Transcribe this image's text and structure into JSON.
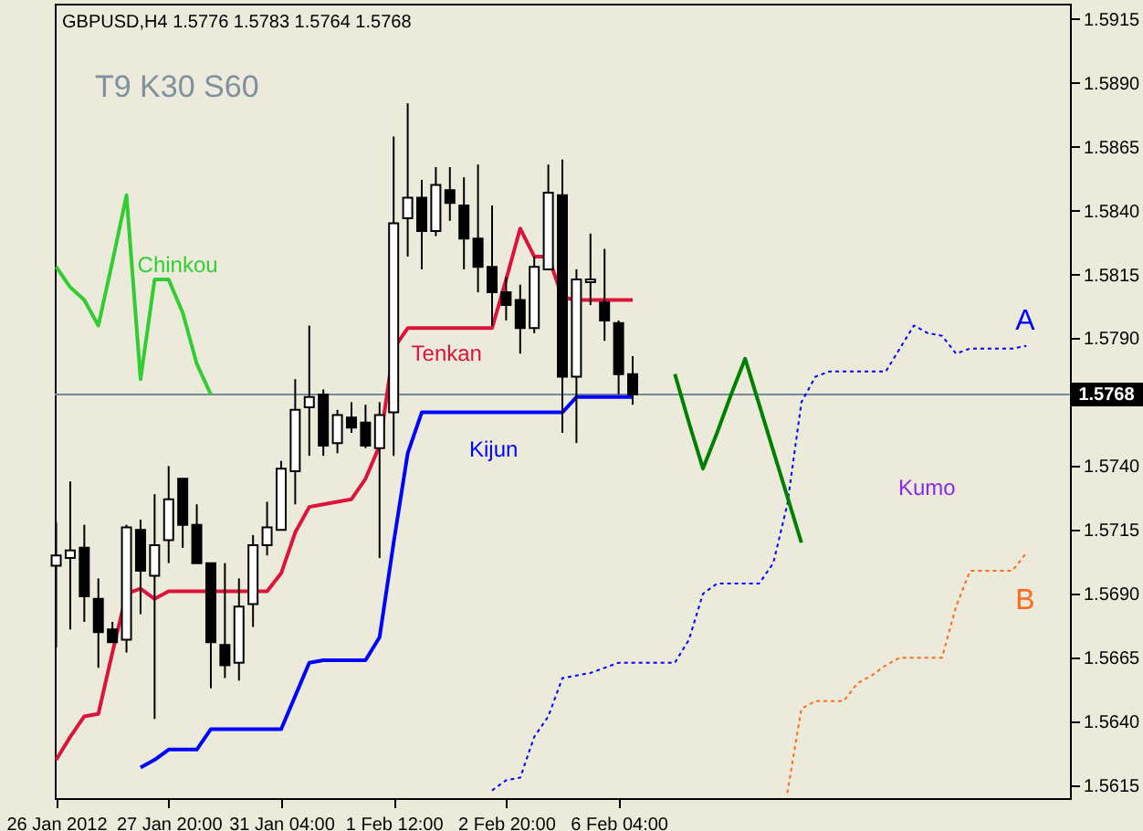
{
  "chart_data": {
    "type": "candlestick",
    "title": "GBPUSD,H4  1.5776 1.5783 1.5764 1.5768",
    "categories": [
      "26 Jan 2012",
      null,
      null,
      null,
      null,
      null,
      null,
      null,
      "27 Jan 20:00",
      null,
      null,
      null,
      null,
      null,
      null,
      null,
      "31 Jan 04:00",
      null,
      null,
      null,
      null,
      null,
      null,
      null,
      "1 Feb 12:00",
      null,
      null,
      null,
      null,
      null,
      null,
      null,
      "2 Feb 20:00",
      null,
      null,
      null,
      null,
      null,
      null,
      null,
      "6 Feb 04:00",
      null,
      null,
      null,
      null,
      null,
      null,
      null,
      null,
      null,
      null,
      null,
      null,
      null,
      null,
      null,
      null,
      null,
      null,
      null,
      null,
      null,
      null,
      null,
      null,
      null,
      null,
      null,
      null,
      null,
      null,
      null,
      null
    ],
    "ohlc": [
      [
        1.5701,
        1.5718,
        1.5669,
        1.5705
      ],
      [
        1.5704,
        1.5734,
        1.5676,
        1.5707
      ],
      [
        1.5708,
        1.5717,
        1.5679,
        1.5689
      ],
      [
        1.5688,
        1.5696,
        1.5661,
        1.5675
      ],
      [
        1.5676,
        1.5679,
        1.5671,
        1.5671
      ],
      [
        1.5672,
        1.5717,
        1.5667,
        1.5716
      ],
      [
        1.5715,
        1.5719,
        1.5682,
        1.5699
      ],
      [
        1.5697,
        1.5729,
        1.5641,
        1.5709
      ],
      [
        1.5711,
        1.574,
        1.5702,
        1.5727
      ],
      [
        1.5735,
        1.5735,
        1.5708,
        1.5717
      ],
      [
        1.5717,
        1.5725,
        1.5702,
        1.5702
      ],
      [
        1.5702,
        1.5702,
        1.5653,
        1.5671
      ],
      [
        1.567,
        1.5702,
        1.5657,
        1.5662
      ],
      [
        1.5663,
        1.5696,
        1.5656,
        1.5685
      ],
      [
        1.5686,
        1.5713,
        1.5677,
        1.5709
      ],
      [
        1.5709,
        1.5726,
        1.5705,
        1.5716
      ],
      [
        1.5715,
        1.5742,
        1.5715,
        1.5739
      ],
      [
        1.5738,
        1.5774,
        1.5725,
        1.5762
      ],
      [
        1.5763,
        1.5795,
        1.5744,
        1.5767
      ],
      [
        1.5768,
        1.577,
        1.5744,
        1.5748
      ],
      [
        1.5749,
        1.5762,
        1.5745,
        1.576
      ],
      [
        1.5759,
        1.5765,
        1.5753,
        1.5755
      ],
      [
        1.5757,
        1.5764,
        1.5747,
        1.5748
      ],
      [
        1.5747,
        1.5765,
        1.5704,
        1.576
      ],
      [
        1.5761,
        1.5869,
        1.5744,
        1.5835
      ],
      [
        1.5837,
        1.5882,
        1.5822,
        1.5845
      ],
      [
        1.5845,
        1.5852,
        1.5817,
        1.5832
      ],
      [
        1.5832,
        1.5857,
        1.583,
        1.585
      ],
      [
        1.5848,
        1.5857,
        1.5836,
        1.5843
      ],
      [
        1.5842,
        1.5853,
        1.5817,
        1.5829
      ],
      [
        1.5829,
        1.5858,
        1.5808,
        1.5818
      ],
      [
        1.5818,
        1.5842,
        1.5795,
        1.5808
      ],
      [
        1.5808,
        1.5814,
        1.5797,
        1.5803
      ],
      [
        1.5805,
        1.5811,
        1.5784,
        1.5794
      ],
      [
        1.5794,
        1.5822,
        1.5792,
        1.5818
      ],
      [
        1.5817,
        1.5858,
        1.5817,
        1.5847
      ],
      [
        1.5846,
        1.586,
        1.5753,
        1.5775
      ],
      [
        1.5775,
        1.5817,
        1.5749,
        1.5813
      ],
      [
        1.5812,
        1.5831,
        1.5803,
        1.5813
      ],
      [
        1.5804,
        1.5825,
        1.5789,
        1.5797
      ],
      [
        1.5796,
        1.5797,
        1.5768,
        1.5776
      ],
      [
        1.5776,
        1.5783,
        1.5764,
        1.5768
      ],
      null,
      null,
      null,
      null,
      null,
      null,
      null,
      null,
      null,
      null,
      null,
      null,
      null,
      null,
      null,
      null,
      null,
      null,
      null,
      null,
      null,
      null,
      null,
      null,
      null,
      null,
      null,
      null,
      null,
      null,
      null
    ],
    "series": [
      {
        "name": "Chinkou",
        "type": "line",
        "color": "#32cd32",
        "values": [
          1.5818,
          1.581,
          1.5805,
          1.5795,
          1.582,
          1.5846,
          1.5774,
          1.5813,
          1.5813,
          1.58,
          1.578,
          1.5768,
          null,
          null,
          null,
          null,
          null,
          null,
          null,
          null,
          null,
          null,
          null,
          null,
          null,
          null,
          null,
          null,
          null,
          null,
          null,
          null,
          null,
          null,
          null,
          null,
          null,
          null,
          null,
          null,
          null,
          null,
          null,
          null,
          null,
          null,
          null,
          null,
          null,
          null,
          null,
          null,
          null,
          null,
          null,
          null,
          null,
          null,
          null,
          null,
          null,
          null,
          null,
          null,
          null,
          null,
          null,
          null,
          null,
          null,
          null,
          null,
          null
        ]
      },
      {
        "name": "Tenkan",
        "type": "line",
        "color": "#dc143c",
        "values": [
          1.5625,
          1.5634,
          1.5642,
          1.5643,
          1.5667,
          1.569,
          1.5692,
          1.5688,
          1.5691,
          1.5691,
          1.5691,
          1.5691,
          1.5691,
          1.5691,
          1.5691,
          1.5691,
          1.5698,
          1.5714,
          1.5724,
          1.5725,
          1.5726,
          1.5727,
          1.5735,
          1.5748,
          1.5786,
          1.5794,
          1.5794,
          1.5794,
          1.5794,
          1.5794,
          1.5794,
          1.5794,
          1.5813,
          1.5833,
          1.5822,
          1.5822,
          1.5806,
          1.5805,
          1.5805,
          1.5805,
          1.5805,
          1.5805,
          null,
          null,
          null,
          null,
          null,
          null,
          null,
          null,
          null,
          null,
          null,
          null,
          null,
          null,
          null,
          null,
          null,
          null,
          null,
          null,
          null,
          null,
          null,
          null,
          null,
          null,
          null,
          null,
          null,
          null,
          null
        ]
      },
      {
        "name": "Kijun",
        "type": "line",
        "color": "#0000ff",
        "values": [
          null,
          null,
          null,
          null,
          null,
          null,
          1.5622,
          1.5625,
          1.5629,
          1.5629,
          1.5629,
          1.5637,
          1.5637,
          1.5637,
          1.5637,
          1.5637,
          1.5637,
          1.565,
          1.5663,
          1.5664,
          1.5664,
          1.5664,
          1.5664,
          1.5673,
          1.571,
          1.5745,
          1.5761,
          1.5761,
          1.5761,
          1.5761,
          1.5761,
          1.5761,
          1.5761,
          1.5761,
          1.5761,
          1.5761,
          1.5761,
          1.5767,
          1.5767,
          1.5767,
          1.5767,
          1.5767,
          null,
          null,
          null,
          null,
          null,
          null,
          null,
          null,
          null,
          null,
          null,
          null,
          null,
          null,
          null,
          null,
          null,
          null,
          null,
          null,
          null,
          null,
          null,
          null,
          null,
          null,
          null,
          null,
          null,
          null,
          null
        ]
      },
      {
        "name": "A",
        "type": "line",
        "line_style": "dotted",
        "color": "#0000ff",
        "values": [
          null,
          null,
          null,
          null,
          null,
          null,
          null,
          null,
          null,
          null,
          null,
          null,
          null,
          null,
          null,
          null,
          null,
          null,
          null,
          null,
          null,
          null,
          null,
          null,
          null,
          null,
          null,
          null,
          null,
          null,
          null,
          1.5613,
          1.5617,
          1.5618,
          1.5634,
          1.5642,
          1.5657,
          1.5658,
          1.5659,
          1.5661,
          1.5663,
          1.5663,
          1.5663,
          1.5663,
          1.5663,
          1.5672,
          1.569,
          1.5694,
          1.5694,
          1.5694,
          1.5694,
          1.5702,
          1.5725,
          1.5765,
          1.5775,
          1.5777,
          1.5777,
          1.5777,
          1.5777,
          1.5777,
          1.5786,
          1.5795,
          1.5792,
          1.5791,
          1.5784,
          1.5786,
          1.5786,
          1.5786,
          1.5786,
          1.5787,
          null,
          null,
          null
        ]
      },
      {
        "name": "B",
        "type": "line",
        "line_style": "dotted",
        "color": "#ff6a1a",
        "values": [
          null,
          null,
          null,
          null,
          null,
          null,
          null,
          null,
          null,
          null,
          null,
          null,
          null,
          null,
          null,
          null,
          null,
          null,
          null,
          null,
          null,
          null,
          null,
          null,
          null,
          null,
          null,
          null,
          null,
          null,
          null,
          null,
          null,
          null,
          null,
          null,
          null,
          null,
          null,
          null,
          null,
          null,
          null,
          null,
          null,
          null,
          null,
          null,
          null,
          null,
          null,
          null,
          1.5612,
          1.5645,
          1.5648,
          1.5648,
          1.5648,
          1.5655,
          1.5658,
          1.5662,
          1.5665,
          1.5665,
          1.5665,
          1.5665,
          1.5685,
          1.5699,
          1.5699,
          1.5699,
          1.5699,
          1.5706,
          null,
          null,
          null
        ]
      },
      {
        "type": "line",
        "color": "#008000",
        "values": [
          null,
          null,
          null,
          null,
          null,
          null,
          null,
          null,
          null,
          null,
          null,
          null,
          null,
          null,
          null,
          null,
          null,
          null,
          null,
          null,
          null,
          null,
          null,
          null,
          null,
          null,
          null,
          null,
          null,
          null,
          null,
          null,
          null,
          null,
          null,
          null,
          null,
          null,
          null,
          null,
          null,
          null,
          null,
          null,
          1.5776,
          1.5757,
          1.5739,
          1.5753,
          1.5768,
          1.5782,
          1.5764,
          1.5746,
          1.5728,
          1.571,
          null,
          null,
          null,
          null,
          null,
          null,
          null,
          null,
          null,
          null,
          null,
          null,
          null,
          null,
          null,
          null,
          null,
          null,
          null
        ]
      }
    ],
    "ref_lines": [
      {
        "axis": "y",
        "value": 1.5768,
        "label": "1.5768",
        "color": "#778899"
      }
    ],
    "annotations": [
      "T9 K30 S60",
      "Kumo"
    ],
    "ylim": [
      1.561,
      1.5921
    ],
    "yticks": [
      1.5615,
      {
        "value": 1.564,
        "label": "1.5640"
      },
      1.5665,
      {
        "value": 1.569,
        "label": "1.5690"
      },
      1.5715,
      {
        "value": 1.574,
        "label": "1.5740"
      },
      {
        "value": 1.5765,
        "label": null
      },
      {
        "value": 1.579,
        "label": "1.5790"
      },
      1.5815,
      {
        "value": 1.584,
        "label": "1.5840"
      },
      1.5865,
      {
        "value": 1.589,
        "label": "1.5890"
      },
      1.5915
    ],
    "grid": false
  }
}
